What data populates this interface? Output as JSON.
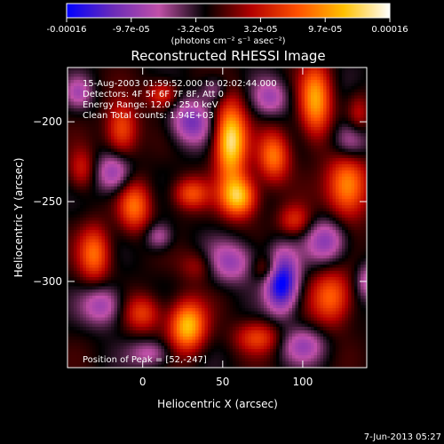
{
  "colors": {
    "background": "#000000",
    "text": "#ffffff"
  },
  "colorbar": {
    "stops": [
      "#0000ff",
      "#6a2bb8",
      "#c050a8",
      "#000000",
      "#b30000",
      "#ff5000",
      "#ffc000",
      "#ffffff"
    ],
    "tick_labels": [
      "-0.00016",
      "-9.7e-05",
      "-3.2e-05",
      "3.2e-05",
      "9.7e-05",
      "0.00016"
    ],
    "units_label": "(photons cm⁻² s⁻¹ asec⁻²)"
  },
  "chart_data": {
    "type": "heatmap",
    "title": "Reconstructed RHESSI Image",
    "xlabel": "Heliocentric X (arcsec)",
    "ylabel": "Heliocentric Y (arcsec)",
    "xlim": [
      -47,
      140
    ],
    "ylim": [
      -354,
      -166
    ],
    "xticks": [
      0,
      50,
      100
    ],
    "yticks": [
      -300,
      -250,
      -200
    ],
    "zlim": [
      -0.00016,
      0.00016
    ],
    "info_lines": [
      "15-Aug-2003 01:59:52.000 to 02:02:44.000",
      "Detectors: 4F 5F 6F 7F 8F, Att 0",
      "Energy Range: 12.0 - 25.0 keV",
      "Clean    Total counts: 1.94E+03"
    ],
    "peak_label": "Position of Peak = [52,-247]",
    "components": [
      {
        "x": 55,
        "y": -212,
        "sx": 7,
        "sy": 17,
        "a": 1.0
      },
      {
        "x": 60,
        "y": -247,
        "sx": 8,
        "sy": 9,
        "a": 0.85
      },
      {
        "x": 108,
        "y": -187,
        "sx": 7,
        "sy": 16,
        "a": 0.75
      },
      {
        "x": 82,
        "y": -222,
        "sx": 7,
        "sy": 11,
        "a": 0.62
      },
      {
        "x": -13,
        "y": -205,
        "sx": 7,
        "sy": 12,
        "a": 0.55
      },
      {
        "x": -30,
        "y": -283,
        "sx": 7,
        "sy": 12,
        "a": 0.6
      },
      {
        "x": -5,
        "y": -253,
        "sx": 7,
        "sy": 11,
        "a": 0.6
      },
      {
        "x": 28,
        "y": -328,
        "sx": 8,
        "sy": 11,
        "a": 0.85
      },
      {
        "x": 128,
        "y": -240,
        "sx": 9,
        "sy": 14,
        "a": 0.75
      },
      {
        "x": 118,
        "y": -310,
        "sx": 9,
        "sy": 12,
        "a": 0.6
      },
      {
        "x": 30,
        "y": -245,
        "sx": 8,
        "sy": 7,
        "a": 0.5
      },
      {
        "x": 0,
        "y": -320,
        "sx": 8,
        "sy": 8,
        "a": 0.45
      },
      {
        "x": 72,
        "y": -335,
        "sx": 10,
        "sy": 7,
        "a": 0.45
      },
      {
        "x": 95,
        "y": -262,
        "sx": 7,
        "sy": 7,
        "a": 0.4
      },
      {
        "x": 12,
        "y": -183,
        "sx": 7,
        "sy": 6,
        "a": 0.45
      },
      {
        "x": 78,
        "y": -292,
        "sx": 7,
        "sy": 6,
        "a": 0.35
      },
      {
        "x": 35,
        "y": -290,
        "sx": 8,
        "sy": 7,
        "a": 0.3
      },
      {
        "x": -38,
        "y": -230,
        "sx": 6,
        "sy": 9,
        "a": 0.35
      },
      {
        "x": 135,
        "y": -195,
        "sx": 5,
        "sy": 9,
        "a": 0.3
      },
      {
        "x": 87,
        "y": -300,
        "sx": 7,
        "sy": 13,
        "a": -0.95
      },
      {
        "x": 30,
        "y": -200,
        "sx": 9,
        "sy": 10,
        "a": -0.55
      },
      {
        "x": -18,
        "y": -232,
        "sx": 8,
        "sy": 9,
        "a": -0.5
      },
      {
        "x": 115,
        "y": -275,
        "sx": 9,
        "sy": 10,
        "a": -0.5
      },
      {
        "x": 55,
        "y": -288,
        "sx": 12,
        "sy": 9,
        "a": -0.45
      },
      {
        "x": -25,
        "y": -315,
        "sx": 9,
        "sy": 9,
        "a": -0.45
      },
      {
        "x": 100,
        "y": -340,
        "sx": 10,
        "sy": 8,
        "a": -0.4
      },
      {
        "x": 130,
        "y": -212,
        "sx": 8,
        "sy": 9,
        "a": -0.45
      },
      {
        "x": 80,
        "y": -185,
        "sx": 8,
        "sy": 8,
        "a": -0.4
      },
      {
        "x": 5,
        "y": -345,
        "sx": 9,
        "sy": 6,
        "a": -0.35
      },
      {
        "x": 45,
        "y": -180,
        "sx": 6,
        "sy": 6,
        "a": -0.3
      },
      {
        "x": -40,
        "y": -182,
        "sx": 6,
        "sy": 7,
        "a": -0.35
      },
      {
        "x": 10,
        "y": -272,
        "sx": 6,
        "sy": 6,
        "a": -0.35
      },
      {
        "x": 140,
        "y": -300,
        "sx": 5,
        "sy": 8,
        "a": -0.35
      }
    ]
  },
  "footer": {
    "timestamp": "7-Jun-2013 05:27"
  }
}
